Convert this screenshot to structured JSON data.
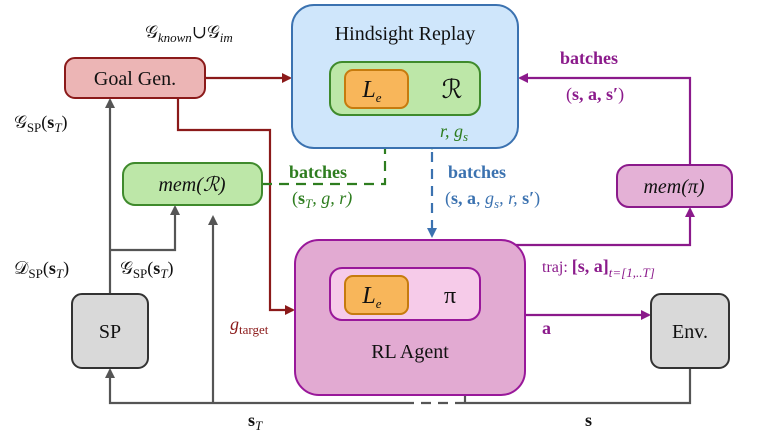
{
  "goal_gen": "Goal Gen.",
  "hindsight_replay": {
    "title": "Hindsight Replay",
    "loss": [
      "L",
      "e"
    ],
    "buffer": "ℛ"
  },
  "rl_agent": {
    "title": "RL Agent",
    "loss": [
      "L",
      "e"
    ],
    "policy": "π"
  },
  "mem_r": "mem(ℛ)",
  "mem_pi": "mem(π)",
  "sp": "SP",
  "env": "Env.",
  "edges": {
    "goal_set": [
      "𝒢",
      "known",
      "∪",
      "𝒢",
      "im"
    ],
    "g_sp_up": [
      "𝒢",
      "SP",
      "(",
      "s",
      "T",
      ")"
    ],
    "d_sp": [
      "𝒟",
      "SP",
      "(",
      "s",
      "T",
      ")"
    ],
    "g_sp_right": [
      "𝒢",
      "SP",
      "(",
      "s",
      "T",
      ")"
    ],
    "g_target": [
      "g",
      "target"
    ],
    "s_t": [
      "s",
      "T"
    ],
    "s": "s",
    "batches_r": {
      "title": "batches",
      "tuple": [
        "(",
        "s",
        "T",
        ", g, r)"
      ]
    },
    "r_gs": [
      "r, g",
      "s"
    ],
    "batches_agent": {
      "title": "batches",
      "tuple": [
        "(",
        "s, a",
        ", g",
        "s",
        ", r, ",
        "s′",
        ")"
      ]
    },
    "a": "a",
    "traj": [
      "traj: ",
      "[s, a]",
      "t=[1,..T]"
    ],
    "batches_pi": {
      "title": "batches",
      "tuple": [
        "(",
        "s, a, s′",
        ")"
      ]
    }
  }
}
